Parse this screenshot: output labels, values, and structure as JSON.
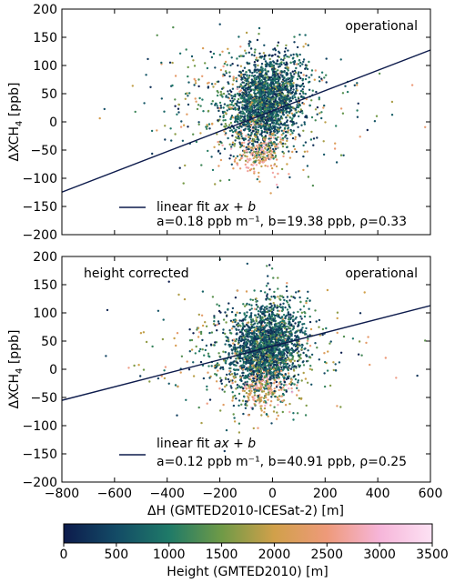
{
  "chart_data": [
    {
      "type": "scatter",
      "title": "",
      "xlabel": "",
      "ylabel": "ΔXCH",
      "ylabel_sub": "4",
      "ylabel_unit": "[ppb]",
      "xlim": [
        -800,
        600
      ],
      "ylim": [
        -200,
        200
      ],
      "xticks": [
        -800,
        -600,
        -400,
        -200,
        0,
        200,
        400,
        600
      ],
      "yticks": [
        -200,
        -150,
        -100,
        -50,
        0,
        50,
        100,
        150,
        200
      ],
      "xtick_labels_shown": false,
      "label_left": "",
      "label_right": "operational",
      "fit": {
        "a": 0.18,
        "b": 19.38,
        "rho": 0.33
      },
      "legend": {
        "line_text_prefix": "linear fit ",
        "line_text_formula": "ax + b",
        "stats_text": "a=0.18 ppb m⁻¹, b=19.38 ppb, ρ=0.33"
      },
      "scatter_summary": {
        "seed": 11,
        "n_points": 2600,
        "center_x": -25,
        "center_y": 35,
        "spread_x": 70,
        "spread_y": 38,
        "low_pocket": {
          "x": -40,
          "y": -50
        }
      }
    },
    {
      "type": "scatter",
      "title": "",
      "xlabel": "ΔH (GMTED2010-ICESat-2) [m]",
      "ylabel": "ΔXCH",
      "ylabel_sub": "4",
      "ylabel_unit": "[ppb]",
      "xlim": [
        -800,
        600
      ],
      "ylim": [
        -200,
        200
      ],
      "xticks": [
        -800,
        -600,
        -400,
        -200,
        0,
        200,
        400,
        600
      ],
      "yticks": [
        -200,
        -150,
        -100,
        -50,
        0,
        50,
        100,
        150,
        200
      ],
      "xtick_labels_shown": true,
      "label_left": "height corrected",
      "label_right": "operational",
      "fit": {
        "a": 0.12,
        "b": 40.91,
        "rho": 0.25
      },
      "legend": {
        "line_text_prefix": "linear fit ",
        "line_text_formula": "ax + b",
        "stats_text": "a=0.12 ppb m⁻¹, b=40.91 ppb, ρ=0.25"
      },
      "scatter_summary": {
        "seed": 29,
        "n_points": 2600,
        "center_x": -25,
        "center_y": 40,
        "spread_x": 70,
        "spread_y": 38,
        "low_pocket": {
          "x": -40,
          "y": -30
        }
      }
    }
  ],
  "colorbar": {
    "label": "Height (GMTED2010) [m]",
    "min": 0,
    "max": 3500,
    "ticks": [
      0,
      500,
      1000,
      1500,
      2000,
      2500,
      3000,
      3500
    ],
    "colormap_stops": [
      "#0d1b4c",
      "#134b66",
      "#1f7a68",
      "#6f9a47",
      "#d1a04a",
      "#ee9a7a",
      "#f6b5d9",
      "#fde2f4"
    ]
  },
  "colors": {
    "fit_line": "#0d1b4c",
    "axis": "#000000"
  }
}
